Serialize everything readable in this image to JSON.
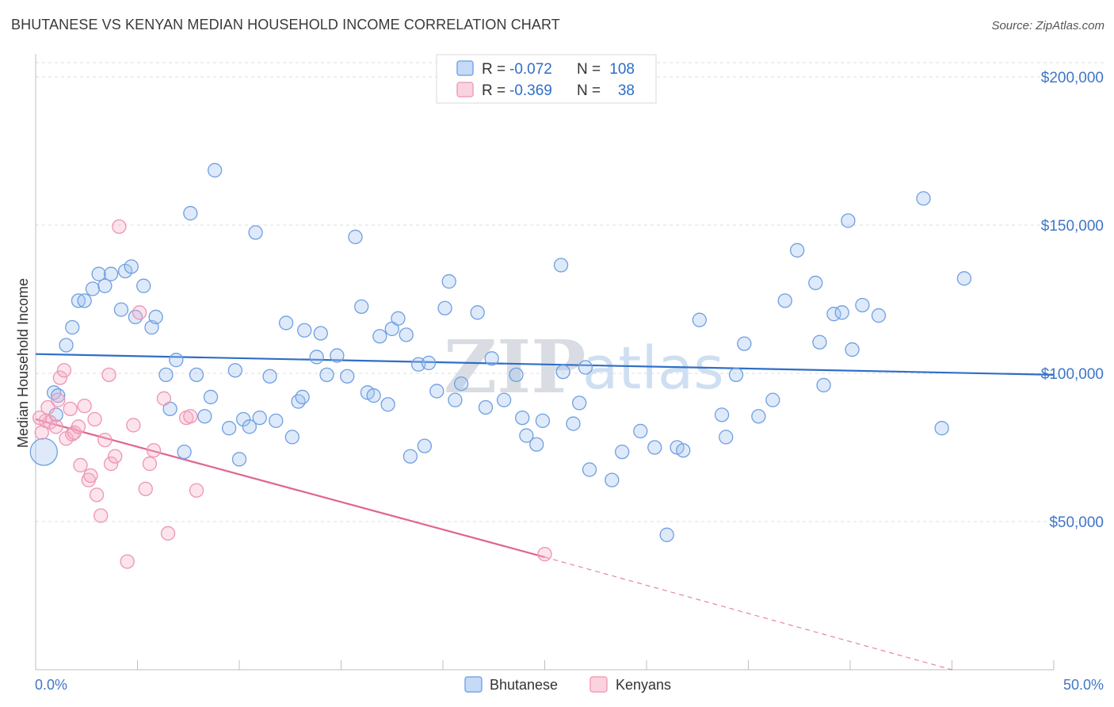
{
  "title": "BHUTANESE VS KENYAN MEDIAN HOUSEHOLD INCOME CORRELATION CHART",
  "source": "Source: ZipAtlas.com",
  "watermark": {
    "zip": "ZIP",
    "atlas": "atlas"
  },
  "legend": {
    "rows": [
      {
        "r_label": "R =",
        "r_value": "-0.072",
        "n_label": "N =",
        "n_value": "108",
        "color": "#7aa7e8"
      },
      {
        "r_label": "R =",
        "r_value": "-0.369",
        "n_label": "N =",
        "n_value": "38",
        "color": "#f0a0bb"
      }
    ]
  },
  "bottom_legend": {
    "items": [
      "Bhutanese",
      "Kenyans"
    ]
  },
  "chart_data": {
    "type": "scatter",
    "title": "BHUTANESE VS KENYAN MEDIAN HOUSEHOLD INCOME CORRELATION CHART",
    "xlabel": "",
    "ylabel": "Median Household Income",
    "xlim": [
      0,
      50
    ],
    "ylim": [
      0,
      210000
    ],
    "x_tick_labels": [
      "0.0%",
      "50.0%"
    ],
    "y_ticks": [
      50000,
      100000,
      150000,
      200000
    ],
    "y_tick_labels": [
      "$50,000",
      "$100,000",
      "$150,000",
      "$200,000"
    ],
    "grid": true,
    "legend_position": "top-center",
    "series": [
      {
        "name": "Bhutanese",
        "color": "#7aa7e8",
        "trend": {
          "x": [
            0,
            50
          ],
          "y": [
            106500,
            99500
          ],
          "style": "solid"
        },
        "points": [
          [
            0.4,
            73500
          ],
          [
            0.9,
            93500
          ],
          [
            1.0,
            86000
          ],
          [
            1.1,
            92500
          ],
          [
            1.5,
            109500
          ],
          [
            1.8,
            115500
          ],
          [
            2.1,
            124500
          ],
          [
            2.4,
            124500
          ],
          [
            2.8,
            128500
          ],
          [
            3.1,
            133500
          ],
          [
            3.4,
            129500
          ],
          [
            3.7,
            133500
          ],
          [
            4.2,
            121500
          ],
          [
            4.4,
            134500
          ],
          [
            4.7,
            136000
          ],
          [
            4.9,
            119000
          ],
          [
            5.3,
            129500
          ],
          [
            5.7,
            115500
          ],
          [
            5.9,
            119000
          ],
          [
            6.4,
            99500
          ],
          [
            6.6,
            88000
          ],
          [
            6.9,
            104500
          ],
          [
            7.3,
            73500
          ],
          [
            7.6,
            154000
          ],
          [
            7.9,
            99500
          ],
          [
            8.3,
            85500
          ],
          [
            8.6,
            92000
          ],
          [
            8.8,
            168500
          ],
          [
            9.5,
            81500
          ],
          [
            9.8,
            101000
          ],
          [
            10.0,
            71000
          ],
          [
            10.2,
            84500
          ],
          [
            10.5,
            82000
          ],
          [
            10.8,
            147500
          ],
          [
            11.0,
            85000
          ],
          [
            11.5,
            99000
          ],
          [
            11.8,
            84000
          ],
          [
            12.3,
            117000
          ],
          [
            12.6,
            78500
          ],
          [
            12.9,
            90500
          ],
          [
            13.1,
            92000
          ],
          [
            13.2,
            114500
          ],
          [
            13.8,
            105500
          ],
          [
            14.0,
            113500
          ],
          [
            14.3,
            99500
          ],
          [
            14.8,
            106000
          ],
          [
            15.3,
            99000
          ],
          [
            15.7,
            146000
          ],
          [
            16.0,
            122500
          ],
          [
            16.3,
            93500
          ],
          [
            16.6,
            92500
          ],
          [
            16.9,
            112500
          ],
          [
            17.3,
            89500
          ],
          [
            17.5,
            115000
          ],
          [
            17.8,
            118500
          ],
          [
            18.2,
            113000
          ],
          [
            18.4,
            72000
          ],
          [
            18.8,
            103000
          ],
          [
            19.1,
            75500
          ],
          [
            19.3,
            103500
          ],
          [
            19.7,
            94000
          ],
          [
            20.1,
            122000
          ],
          [
            20.3,
            131000
          ],
          [
            20.6,
            91000
          ],
          [
            20.9,
            96500
          ],
          [
            21.7,
            120500
          ],
          [
            22.1,
            88500
          ],
          [
            22.4,
            105000
          ],
          [
            23.0,
            91000
          ],
          [
            23.6,
            99500
          ],
          [
            23.9,
            85000
          ],
          [
            24.1,
            79000
          ],
          [
            24.6,
            76000
          ],
          [
            24.9,
            84000
          ],
          [
            25.8,
            136500
          ],
          [
            25.9,
            100500
          ],
          [
            26.4,
            83000
          ],
          [
            26.7,
            90000
          ],
          [
            27.0,
            102000
          ],
          [
            27.2,
            67500
          ],
          [
            28.3,
            64000
          ],
          [
            28.8,
            73500
          ],
          [
            29.7,
            80500
          ],
          [
            30.4,
            75000
          ],
          [
            31.0,
            45500
          ],
          [
            31.5,
            75000
          ],
          [
            31.8,
            74000
          ],
          [
            32.6,
            118000
          ],
          [
            33.7,
            86000
          ],
          [
            33.9,
            78500
          ],
          [
            34.4,
            99500
          ],
          [
            34.8,
            110000
          ],
          [
            35.5,
            85500
          ],
          [
            36.2,
            91000
          ],
          [
            36.8,
            124500
          ],
          [
            37.4,
            141500
          ],
          [
            38.3,
            130500
          ],
          [
            38.5,
            110500
          ],
          [
            38.7,
            96000
          ],
          [
            39.2,
            120000
          ],
          [
            39.6,
            120500
          ],
          [
            39.9,
            151500
          ],
          [
            40.1,
            108000
          ],
          [
            40.6,
            123000
          ],
          [
            41.4,
            119500
          ],
          [
            43.6,
            159000
          ],
          [
            44.5,
            81500
          ],
          [
            45.6,
            132000
          ]
        ]
      },
      {
        "name": "Kenyans",
        "color": "#f0a0bb",
        "trend": {
          "x": [
            0,
            25
          ],
          "y": [
            84500,
            38000
          ],
          "style": "solid",
          "extension": {
            "x": [
              25,
              45
            ],
            "y": [
              38000,
              0
            ],
            "style": "dashed"
          }
        },
        "points": [
          [
            0.3,
            80000
          ],
          [
            0.5,
            84000
          ],
          [
            0.6,
            88500
          ],
          [
            0.7,
            83500
          ],
          [
            1.0,
            82000
          ],
          [
            1.1,
            91000
          ],
          [
            1.2,
            98500
          ],
          [
            1.4,
            101000
          ],
          [
            1.5,
            78000
          ],
          [
            1.7,
            88000
          ],
          [
            1.8,
            79500
          ],
          [
            1.9,
            80000
          ],
          [
            2.1,
            82000
          ],
          [
            2.2,
            69000
          ],
          [
            2.4,
            89000
          ],
          [
            2.6,
            64000
          ],
          [
            2.7,
            65500
          ],
          [
            2.9,
            84500
          ],
          [
            3.0,
            59000
          ],
          [
            3.2,
            52000
          ],
          [
            3.4,
            77500
          ],
          [
            3.6,
            99500
          ],
          [
            3.7,
            69500
          ],
          [
            3.9,
            72000
          ],
          [
            4.1,
            149500
          ],
          [
            4.5,
            36500
          ],
          [
            4.8,
            82500
          ],
          [
            5.1,
            120500
          ],
          [
            5.4,
            61000
          ],
          [
            5.6,
            69500
          ],
          [
            5.8,
            74000
          ],
          [
            6.3,
            91500
          ],
          [
            6.5,
            46000
          ],
          [
            7.4,
            85000
          ],
          [
            7.6,
            85500
          ],
          [
            7.9,
            60500
          ],
          [
            25.0,
            39000
          ],
          [
            0.2,
            85000
          ]
        ]
      }
    ]
  }
}
